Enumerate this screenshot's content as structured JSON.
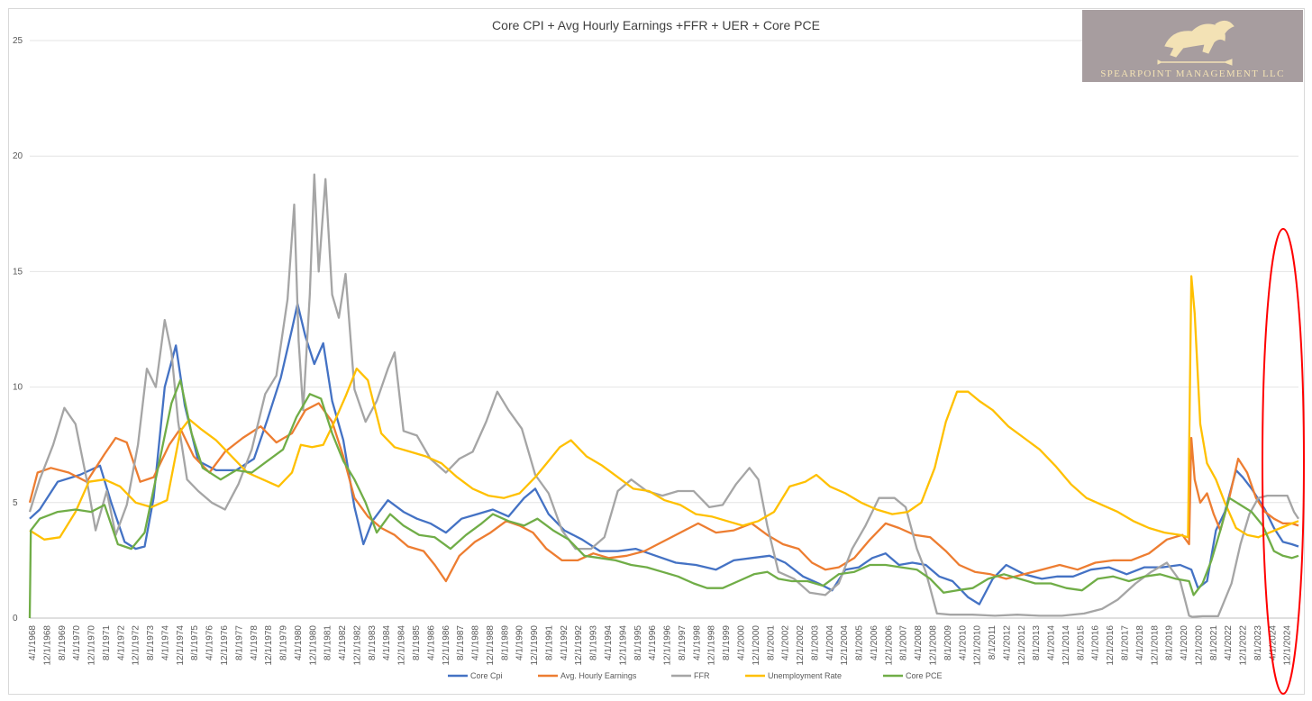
{
  "chart_data": {
    "type": "line",
    "title": "Core CPI + Avg Hourly Earnings +FFR + UER + Core PCE",
    "xlabel": "",
    "ylabel": "",
    "ylim": [
      0,
      25
    ],
    "yticks": [
      0,
      5,
      10,
      15,
      20,
      25
    ],
    "grid": true,
    "legend_position": "bottom",
    "x_tick_labels": [
      "4/1/1968",
      "12/1/1968",
      "8/1/1969",
      "4/1/1970",
      "12/1/1970",
      "8/1/1971",
      "4/1/1972",
      "12/1/1972",
      "8/1/1973",
      "4/1/1974",
      "12/1/1974",
      "8/1/1975",
      "4/1/1976",
      "12/1/1976",
      "8/1/1977",
      "4/1/1978",
      "12/1/1978",
      "8/1/1979",
      "4/1/1980",
      "12/1/1980",
      "8/1/1981",
      "4/1/1982",
      "12/1/1982",
      "8/1/1983",
      "4/1/1984",
      "12/1/1984",
      "8/1/1985",
      "4/1/1986",
      "12/1/1986",
      "8/1/1987",
      "4/1/1988",
      "12/1/1988",
      "8/1/1989",
      "4/1/1990",
      "12/1/1990",
      "8/1/1991",
      "4/1/1992",
      "12/1/1992",
      "8/1/1993",
      "4/1/1994",
      "12/1/1994",
      "8/1/1995",
      "4/1/1996",
      "12/1/1996",
      "8/1/1997",
      "4/1/1998",
      "12/1/1998",
      "8/1/1999",
      "4/1/2000",
      "12/1/2000",
      "8/1/2001",
      "4/1/2002",
      "12/1/2002",
      "8/1/2003",
      "4/1/2004",
      "12/1/2004",
      "8/1/2005",
      "4/1/2006",
      "12/1/2006",
      "8/1/2007",
      "4/1/2008",
      "12/1/2008",
      "8/1/2009",
      "4/1/2010",
      "12/1/2010",
      "8/1/2011",
      "4/1/2012",
      "12/1/2012",
      "8/1/2013",
      "4/1/2014",
      "12/1/2014",
      "8/1/2015",
      "4/1/2016",
      "12/1/2016",
      "8/1/2017",
      "4/1/2018",
      "12/1/2018",
      "8/1/2019",
      "4/1/2020",
      "12/1/2020",
      "8/1/2021",
      "4/1/2022",
      "12/1/2022",
      "8/1/2023",
      "4/1/2024",
      "12/1/2024"
    ],
    "series": [
      {
        "name": "Core Cpi",
        "color": "#4472c4",
        "x": [
          1968.25,
          1968.7,
          1969.5,
          1970.5,
          1971.4,
          1971.9,
          1972.5,
          1973.0,
          1973.4,
          1973.8,
          1974.3,
          1974.8,
          1975.2,
          1975.8,
          1976.6,
          1977.5,
          1978.3,
          1978.9,
          1979.5,
          1980.0,
          1980.25,
          1980.6,
          1981.0,
          1981.4,
          1981.8,
          1982.3,
          1982.8,
          1983.2,
          1983.6,
          1984.3,
          1985.0,
          1985.6,
          1986.2,
          1986.9,
          1987.6,
          1988.3,
          1989.0,
          1989.7,
          1990.4,
          1990.9,
          1991.5,
          1992.2,
          1993.0,
          1993.8,
          1994.6,
          1995.4,
          1996.3,
          1997.2,
          1998.1,
          1999.0,
          1999.8,
          2000.6,
          2001.4,
          2002.1,
          2002.9,
          2003.6,
          2004.2,
          2004.8,
          2005.4,
          2006.0,
          2006.6,
          2007.2,
          2007.8,
          2008.4,
          2009.0,
          2009.6,
          2010.3,
          2010.8,
          2011.4,
          2012.0,
          2012.8,
          2013.6,
          2014.3,
          2015.0,
          2015.8,
          2016.6,
          2017.4,
          2018.2,
          2019.0,
          2019.8,
          2020.3,
          2020.6,
          2021.0,
          2021.4,
          2021.8,
          2022.3,
          2022.6,
          2023.0,
          2023.6,
          2024.0,
          2024.4,
          2024.8,
          2025.1
        ],
        "y": [
          4.3,
          4.7,
          5.9,
          6.2,
          6.6,
          5.0,
          3.3,
          3.0,
          3.1,
          5.2,
          10.0,
          11.8,
          9.2,
          6.8,
          6.4,
          6.4,
          6.9,
          8.6,
          10.4,
          12.5,
          13.6,
          12.2,
          11.0,
          11.9,
          9.4,
          7.7,
          4.8,
          3.2,
          4.2,
          5.1,
          4.6,
          4.3,
          4.1,
          3.7,
          4.3,
          4.5,
          4.7,
          4.4,
          5.2,
          5.6,
          4.5,
          3.8,
          3.4,
          2.9,
          2.9,
          3.0,
          2.7,
          2.4,
          2.3,
          2.1,
          2.5,
          2.6,
          2.7,
          2.4,
          1.8,
          1.5,
          1.2,
          2.1,
          2.2,
          2.6,
          2.8,
          2.3,
          2.4,
          2.3,
          1.8,
          1.6,
          0.9,
          0.6,
          1.7,
          2.3,
          1.9,
          1.7,
          1.8,
          1.8,
          2.1,
          2.2,
          1.9,
          2.2,
          2.2,
          2.3,
          2.1,
          1.3,
          1.6,
          3.8,
          4.6,
          6.4,
          6.1,
          5.6,
          4.7,
          3.9,
          3.3,
          3.2,
          3.1
        ]
      },
      {
        "name": "Avg. Hourly Earnings",
        "color": "#ed7d31",
        "x": [
          1968.25,
          1968.6,
          1969.2,
          1970.0,
          1970.8,
          1971.6,
          1972.1,
          1972.6,
          1973.2,
          1973.8,
          1974.5,
          1975.0,
          1975.6,
          1976.3,
          1977.0,
          1977.8,
          1978.6,
          1979.3,
          1980.0,
          1980.6,
          1981.2,
          1981.8,
          1982.3,
          1982.8,
          1983.4,
          1984.0,
          1984.6,
          1985.2,
          1985.9,
          1986.4,
          1986.9,
          1987.5,
          1988.2,
          1988.9,
          1989.6,
          1990.2,
          1990.8,
          1991.4,
          1992.1,
          1992.8,
          1993.5,
          1994.2,
          1995.0,
          1995.8,
          1996.6,
          1997.4,
          1998.2,
          1999.0,
          1999.8,
          2000.6,
          2001.3,
          2002.0,
          2002.7,
          2003.3,
          2003.9,
          2004.5,
          2005.2,
          2005.9,
          2006.6,
          2007.2,
          2007.9,
          2008.6,
          2009.3,
          2009.9,
          2010.6,
          2011.3,
          2012.0,
          2012.8,
          2013.6,
          2014.4,
          2015.2,
          2016.0,
          2016.8,
          2017.6,
          2018.4,
          2019.2,
          2019.9,
          2020.2,
          2020.3,
          2020.45,
          2020.7,
          2021.0,
          2021.3,
          2021.6,
          2022.0,
          2022.4,
          2022.8,
          2023.2,
          2023.6,
          2024.0,
          2024.4,
          2024.8,
          2025.1
        ],
        "y": [
          5.0,
          6.3,
          6.5,
          6.3,
          5.9,
          7.1,
          7.8,
          7.6,
          5.9,
          6.1,
          7.5,
          8.2,
          7.0,
          6.3,
          7.2,
          7.8,
          8.3,
          7.6,
          8.0,
          9.0,
          9.3,
          8.5,
          7.0,
          5.2,
          4.4,
          3.9,
          3.6,
          3.1,
          2.9,
          2.3,
          1.6,
          2.7,
          3.3,
          3.7,
          4.2,
          4.0,
          3.7,
          3.0,
          2.5,
          2.5,
          2.8,
          2.6,
          2.7,
          2.9,
          3.3,
          3.7,
          4.1,
          3.7,
          3.8,
          4.1,
          3.6,
          3.2,
          3.0,
          2.4,
          2.1,
          2.2,
          2.6,
          3.4,
          4.1,
          3.9,
          3.6,
          3.5,
          2.9,
          2.3,
          2.0,
          1.9,
          1.7,
          1.9,
          2.1,
          2.3,
          2.1,
          2.4,
          2.5,
          2.5,
          2.8,
          3.4,
          3.6,
          3.2,
          7.8,
          6.0,
          5.0,
          5.4,
          4.5,
          3.8,
          5.2,
          6.9,
          6.3,
          5.2,
          4.6,
          4.3,
          4.1,
          4.1,
          4.0
        ]
      },
      {
        "name": "FFR",
        "color": "#a5a5a5",
        "x": [
          1968.25,
          1968.7,
          1969.3,
          1969.8,
          1970.3,
          1970.8,
          1971.2,
          1971.7,
          1972.1,
          1972.6,
          1973.1,
          1973.5,
          1973.9,
          1974.3,
          1974.6,
          1974.9,
          1975.3,
          1975.8,
          1976.4,
          1977.0,
          1977.6,
          1978.2,
          1978.8,
          1979.3,
          1979.8,
          1980.1,
          1980.3,
          1980.5,
          1980.8,
          1981.0,
          1981.2,
          1981.5,
          1981.8,
          1982.1,
          1982.4,
          1982.8,
          1983.3,
          1983.8,
          1984.3,
          1984.6,
          1985.0,
          1985.6,
          1986.2,
          1986.9,
          1987.5,
          1988.1,
          1988.7,
          1989.2,
          1989.7,
          1990.3,
          1990.9,
          1991.5,
          1992.1,
          1992.7,
          1993.4,
          1994.0,
          1994.6,
          1995.2,
          1995.9,
          1996.6,
          1997.3,
          1998.0,
          1998.7,
          1999.3,
          1999.9,
          2000.5,
          2000.9,
          2001.3,
          2001.8,
          2002.5,
          2003.2,
          2003.9,
          2004.5,
          2005.1,
          2005.7,
          2006.3,
          2007.0,
          2007.5,
          2008.0,
          2008.4,
          2008.9,
          2009.5,
          2010.5,
          2011.5,
          2012.5,
          2013.5,
          2014.5,
          2015.5,
          2016.3,
          2017.0,
          2017.8,
          2018.5,
          2019.2,
          2019.8,
          2020.2,
          2020.35,
          2020.8,
          2021.5,
          2022.1,
          2022.5,
          2022.9,
          2023.3,
          2023.7,
          2024.2,
          2024.6,
          2024.9,
          2025.1
        ],
        "y": [
          4.6,
          6.0,
          7.5,
          9.1,
          8.4,
          6.0,
          3.8,
          5.5,
          3.6,
          4.9,
          7.5,
          10.8,
          10.0,
          12.9,
          11.5,
          8.5,
          6.0,
          5.5,
          5.0,
          4.7,
          5.8,
          7.3,
          9.7,
          10.5,
          13.8,
          17.9,
          12.0,
          9.0,
          14.0,
          19.2,
          15.0,
          19.0,
          14.0,
          13.0,
          14.9,
          9.9,
          8.5,
          9.4,
          10.8,
          11.5,
          8.1,
          7.9,
          6.9,
          6.3,
          6.9,
          7.2,
          8.5,
          9.8,
          9.0,
          8.2,
          6.2,
          5.4,
          3.8,
          3.0,
          3.0,
          3.5,
          5.5,
          6.0,
          5.5,
          5.3,
          5.5,
          5.5,
          4.8,
          4.9,
          5.8,
          6.5,
          6.0,
          4.0,
          2.0,
          1.7,
          1.1,
          1.0,
          1.5,
          3.0,
          4.0,
          5.2,
          5.2,
          4.8,
          3.0,
          2.0,
          0.2,
          0.15,
          0.15,
          0.1,
          0.15,
          0.1,
          0.1,
          0.2,
          0.4,
          0.8,
          1.5,
          2.0,
          2.4,
          1.6,
          0.1,
          0.05,
          0.08,
          0.08,
          1.5,
          3.2,
          4.5,
          5.2,
          5.3,
          5.3,
          5.3,
          4.6,
          4.3
        ]
      },
      {
        "name": "Unemployment Rate",
        "color": "#ffc000",
        "x": [
          1968.25,
          1968.9,
          1969.6,
          1970.3,
          1970.9,
          1971.6,
          1972.3,
          1973.0,
          1973.7,
          1974.4,
          1975.0,
          1975.4,
          1975.9,
          1976.6,
          1977.3,
          1978.0,
          1978.7,
          1979.4,
          1980.0,
          1980.4,
          1980.9,
          1981.4,
          1981.9,
          1982.4,
          1982.9,
          1983.4,
          1984.0,
          1984.6,
          1985.3,
          1986.0,
          1986.7,
          1987.4,
          1988.1,
          1988.8,
          1989.5,
          1990.2,
          1990.9,
          1991.5,
          1992.0,
          1992.5,
          1993.2,
          1993.9,
          1994.6,
          1995.3,
          1996.0,
          1996.7,
          1997.4,
          1998.1,
          1998.8,
          1999.5,
          2000.2,
          2000.9,
          2001.6,
          2002.3,
          2003.0,
          2003.5,
          2004.1,
          2004.8,
          2005.5,
          2006.2,
          2006.9,
          2007.6,
          2008.2,
          2008.8,
          2009.3,
          2009.8,
          2010.3,
          2010.8,
          2011.4,
          2012.1,
          2012.8,
          2013.5,
          2014.2,
          2014.9,
          2015.6,
          2016.3,
          2017.0,
          2017.7,
          2018.4,
          2019.1,
          2019.8,
          2020.15,
          2020.3,
          2020.45,
          2020.7,
          2021.0,
          2021.4,
          2021.8,
          2022.3,
          2022.8,
          2023.3,
          2023.8,
          2024.3,
          2024.8,
          2025.1
        ],
        "y": [
          3.8,
          3.4,
          3.5,
          4.6,
          5.9,
          6.0,
          5.7,
          5.0,
          4.8,
          5.1,
          8.1,
          8.6,
          8.2,
          7.7,
          7.0,
          6.3,
          6.0,
          5.7,
          6.3,
          7.5,
          7.4,
          7.5,
          8.5,
          9.6,
          10.8,
          10.3,
          8.0,
          7.4,
          7.2,
          7.0,
          6.7,
          6.1,
          5.6,
          5.3,
          5.2,
          5.4,
          6.1,
          6.8,
          7.4,
          7.7,
          7.0,
          6.6,
          6.1,
          5.6,
          5.5,
          5.1,
          4.9,
          4.5,
          4.4,
          4.2,
          4.0,
          4.2,
          4.6,
          5.7,
          5.9,
          6.2,
          5.7,
          5.4,
          5.0,
          4.7,
          4.5,
          4.6,
          5.0,
          6.5,
          8.5,
          9.8,
          9.8,
          9.4,
          9.0,
          8.3,
          7.8,
          7.3,
          6.6,
          5.8,
          5.2,
          4.9,
          4.6,
          4.2,
          3.9,
          3.7,
          3.6,
          3.5,
          14.8,
          13.2,
          8.4,
          6.7,
          6.0,
          5.0,
          3.9,
          3.6,
          3.5,
          3.7,
          3.9,
          4.1,
          4.2
        ]
      },
      {
        "name": "Core PCE",
        "color": "#70ad47",
        "x": [
          1968.25,
          1968.3,
          1968.7,
          1969.5,
          1970.3,
          1971.0,
          1971.6,
          1972.2,
          1972.8,
          1973.4,
          1974.0,
          1974.6,
          1975.0,
          1975.5,
          1976.0,
          1976.8,
          1977.5,
          1978.2,
          1978.9,
          1979.6,
          1980.2,
          1980.8,
          1981.3,
          1981.8,
          1982.3,
          1982.8,
          1983.3,
          1983.8,
          1984.4,
          1985.0,
          1985.7,
          1986.4,
          1987.1,
          1987.8,
          1988.5,
          1989.0,
          1989.7,
          1990.4,
          1991.0,
          1991.7,
          1992.4,
          1993.1,
          1993.8,
          1994.5,
          1995.2,
          1995.9,
          1996.6,
          1997.3,
          1998.0,
          1998.6,
          1999.3,
          2000.0,
          2000.7,
          2001.3,
          2001.8,
          2002.4,
          2003.1,
          2003.8,
          2004.5,
          2005.2,
          2005.9,
          2006.6,
          2007.3,
          2008.0,
          2008.6,
          2009.2,
          2009.8,
          2010.5,
          2011.2,
          2011.9,
          2012.6,
          2013.3,
          2014.0,
          2014.7,
          2015.4,
          2016.1,
          2016.8,
          2017.5,
          2018.2,
          2018.9,
          2019.6,
          2020.2,
          2020.4,
          2020.8,
          2021.2,
          2021.6,
          2022.0,
          2022.5,
          2023.0,
          2023.5,
          2024.0,
          2024.4,
          2024.8,
          2025.1
        ],
        "y": [
          0.0,
          3.8,
          4.3,
          4.6,
          4.7,
          4.6,
          4.9,
          3.2,
          3.0,
          3.7,
          6.5,
          9.3,
          10.3,
          8.0,
          6.5,
          6.0,
          6.4,
          6.3,
          6.8,
          7.3,
          8.7,
          9.7,
          9.5,
          8.0,
          6.8,
          6.0,
          5.0,
          3.7,
          4.5,
          4.0,
          3.6,
          3.5,
          3.0,
          3.6,
          4.1,
          4.5,
          4.2,
          4.0,
          4.3,
          3.8,
          3.4,
          2.7,
          2.6,
          2.5,
          2.3,
          2.2,
          2.0,
          1.8,
          1.5,
          1.3,
          1.3,
          1.6,
          1.9,
          2.0,
          1.7,
          1.6,
          1.6,
          1.4,
          1.9,
          2.0,
          2.3,
          2.3,
          2.2,
          2.1,
          1.7,
          1.1,
          1.2,
          1.3,
          1.7,
          1.9,
          1.7,
          1.5,
          1.5,
          1.3,
          1.2,
          1.7,
          1.8,
          1.6,
          1.8,
          1.9,
          1.7,
          1.6,
          1.0,
          1.5,
          2.5,
          3.8,
          5.2,
          4.9,
          4.6,
          4.0,
          2.9,
          2.7,
          2.6,
          2.7
        ]
      }
    ]
  },
  "logo": {
    "text": "SPEARPOINT MANAGEMENT LLC",
    "background": "#a79d9f",
    "accent": "#f3e2b5",
    "icon": "lion-icon"
  },
  "highlight": {
    "color": "#ff0000",
    "shape": "ellipse",
    "target": "latest data 2024-2025"
  }
}
